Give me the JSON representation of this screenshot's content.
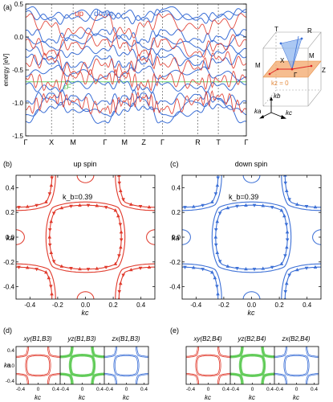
{
  "panels": {
    "a": {
      "label": "(a)"
    },
    "b": {
      "label": "(b)",
      "title": "up spin",
      "kb": "k_b=0.39"
    },
    "c": {
      "label": "(c)",
      "title": "down spin",
      "kb": "k_b=0.39"
    },
    "d": {
      "label": "(d)",
      "sub": [
        "xy(B1,B3)",
        "yz(B1,B3)",
        "zx(B1,B3)"
      ]
    },
    "e": {
      "label": "(e)",
      "sub": [
        "xy(B2,B4)",
        "yz(B2,B4)",
        "zx(B2,B4)"
      ]
    }
  },
  "band_plot": {
    "ylabel": "energy [eV]",
    "yticks": [
      "0.5",
      "0.0",
      "-0.5",
      "-1.0",
      "-1.5"
    ],
    "legend_up": "up",
    "legend_down": "down",
    "fermi_label": "εF",
    "kpath": [
      "Γ",
      "X",
      "M",
      "Γ",
      "M",
      "Z",
      "Γ",
      "R",
      "T",
      "Γ"
    ]
  },
  "bz_inset": {
    "labels": [
      "T",
      "R",
      "X",
      "M",
      "M",
      "Z",
      "Γ"
    ],
    "plane_label": "kz = 0",
    "axes": [
      "ka",
      "kb",
      "kc"
    ]
  },
  "fs_plot": {
    "xlabel": "kc",
    "ylabel": "ka",
    "ticks": [
      "-0.4",
      "-0.2",
      "0.0",
      "0.2",
      "0.4"
    ]
  },
  "mini_plot": {
    "xlabel": "kc",
    "ylabel": "ka",
    "xticks": [
      "-0.4",
      "0",
      "0.4"
    ],
    "yticks": [
      "0.4",
      "0.0",
      "-0.4"
    ]
  },
  "colors": {
    "up": "#e0392b",
    "down": "#3b6fd6",
    "green": "#44c23a",
    "fermi": "#6cd46c",
    "plane": "#f3a76a"
  },
  "chart_data": [
    {
      "type": "line",
      "title": "",
      "xlabel": "",
      "ylabel": "energy [eV]",
      "ylim": [
        -1.5,
        0.5
      ],
      "categories": [
        "Γ",
        "X",
        "M",
        "Γ",
        "M",
        "Z",
        "Γ",
        "R",
        "T",
        "Γ"
      ],
      "fermi_level": -0.68,
      "series": [
        {
          "name": "up",
          "values": [
            0.42,
            0.3,
            0.36,
            0.3,
            0.36,
            0.3,
            0.42,
            0.3,
            0.3,
            0.42
          ]
        },
        {
          "name": "down",
          "values": [
            -1.18,
            -0.95,
            -1.0,
            -1.18,
            -1.0,
            -0.95,
            -1.18,
            -1.0,
            -0.95,
            -1.18
          ]
        }
      ]
    }
  ]
}
